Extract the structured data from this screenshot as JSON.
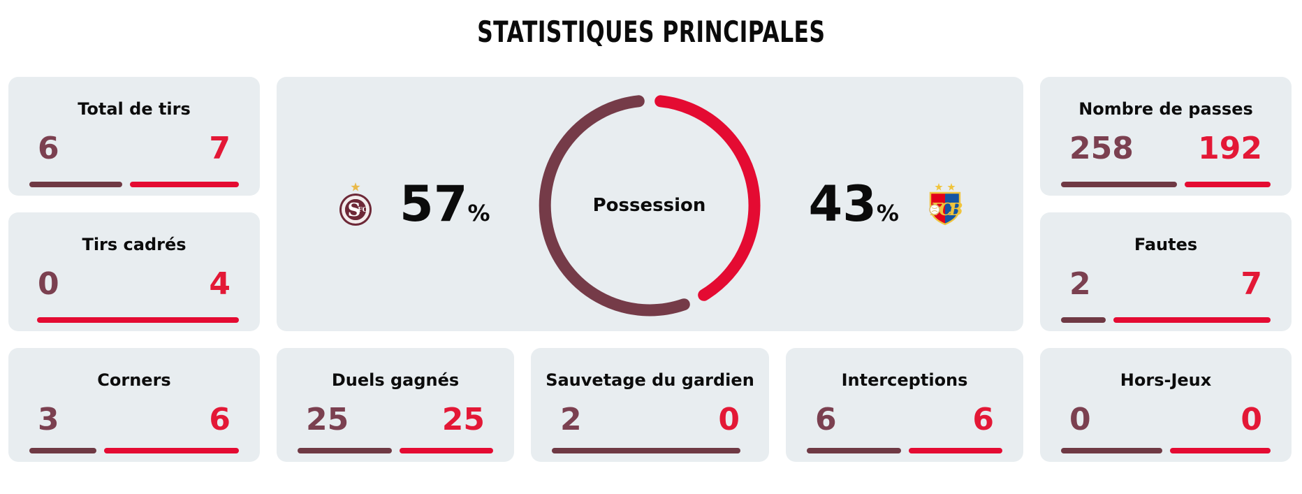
{
  "title": "STATISTIQUES PRINCIPALES",
  "teams": {
    "home": {
      "name": "Servette FC",
      "crest": "servette-crest",
      "digit_color": "#7b4050",
      "bar_color": "#6f3944",
      "donut_color": "#753b48"
    },
    "away": {
      "name": "FC Basel",
      "crest": "fc-basel-crest",
      "digit_color": "#e31836",
      "bar_color": "#e40b32",
      "donut_color": "#e40b32"
    }
  },
  "possession": {
    "label": "Possession",
    "home_pct": 57,
    "away_pct": 43,
    "percent_sign": "%"
  },
  "stats": [
    {
      "label": "Total de tirs",
      "home": 6,
      "away": 7
    },
    {
      "label": "Tirs cadrés",
      "home": 0,
      "away": 4
    },
    {
      "label": "Nombre de passes",
      "home": 258,
      "away": 192
    },
    {
      "label": "Fautes",
      "home": 2,
      "away": 7
    },
    {
      "label": "Corners",
      "home": 3,
      "away": 6
    },
    {
      "label": "Duels gagnés",
      "home": 25,
      "away": 25
    },
    {
      "label": "Sauvetage du gardien",
      "home": 2,
      "away": 0
    },
    {
      "label": "Interceptions",
      "home": 6,
      "away": 6
    },
    {
      "label": "Hors-Jeux",
      "home": 0,
      "away": 0
    }
  ],
  "colors": {
    "card_background": "#e8edf0",
    "page_background": "#ffffff",
    "title_text": "#0b0b0b",
    "home_maroon": "#743a47",
    "away_red": "#e40b32",
    "gold_star": "#e9b949"
  },
  "chart_data": [
    {
      "type": "pie",
      "style": "open-donut",
      "title": "Possession",
      "labels": [
        "Servette FC",
        "FC Basel"
      ],
      "values": [
        57,
        43
      ],
      "unit": "%",
      "colors": [
        "#753b48",
        "#e40b32"
      ],
      "legend_position": "sides"
    },
    {
      "type": "bar",
      "title": "STATISTIQUES PRINCIPALES",
      "categories": [
        "Total de tirs",
        "Tirs cadrés",
        "Nombre de passes",
        "Fautes",
        "Corners",
        "Duels gagnés",
        "Sauvetage du gardien",
        "Interceptions",
        "Hors-Jeux"
      ],
      "series": [
        {
          "name": "Servette FC",
          "color": "#6f3944",
          "values": [
            6,
            0,
            258,
            2,
            3,
            25,
            2,
            6,
            0
          ]
        },
        {
          "name": "FC Basel",
          "color": "#e40b32",
          "values": [
            7,
            4,
            192,
            7,
            6,
            25,
            0,
            6,
            0
          ]
        }
      ],
      "note": "paired proportional bars; equal split when both values are 0"
    }
  ]
}
